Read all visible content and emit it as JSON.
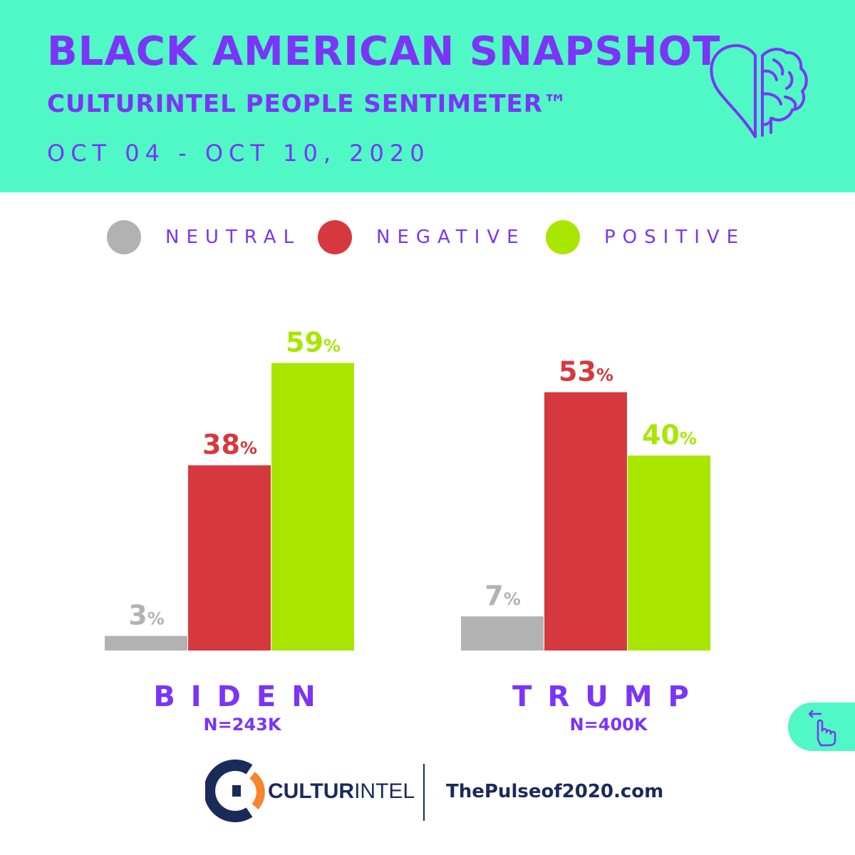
{
  "header": {
    "title": "BLACK AMERICAN SNAPSHOT",
    "subtitle": "CULTURINTEL PEOPLE SENTIMETER™",
    "date_range": "OCT 04 - OCT 10, 2020",
    "icon": "heart-brain-icon"
  },
  "colors": {
    "accent_bg": "#4ff8c4",
    "brand_purple": "#7b34f8",
    "neutral": "#b2b2b2",
    "negative": "#d6393d",
    "positive": "#a8e600",
    "navy": "#1a2b5a",
    "orange": "#f7842e"
  },
  "legend": [
    {
      "label": "NEUTRAL",
      "color": "#b2b2b2"
    },
    {
      "label": "NEGATIVE",
      "color": "#d6393d"
    },
    {
      "label": "POSITIVE",
      "color": "#a8e600"
    }
  ],
  "chart_data": {
    "type": "bar",
    "title": "BLACK AMERICAN SNAPSHOT",
    "categories": [
      "BIDEN",
      "TRUMP"
    ],
    "sample_sizes": [
      "N=243K",
      "N=400K"
    ],
    "series": [
      {
        "name": "NEUTRAL",
        "color": "#b2b2b2",
        "values": [
          3,
          7
        ]
      },
      {
        "name": "NEGATIVE",
        "color": "#d6393d",
        "values": [
          38,
          53
        ]
      },
      {
        "name": "POSITIVE",
        "color": "#a8e600",
        "values": [
          59,
          40
        ]
      }
    ],
    "unit": "%",
    "ylim": [
      0,
      60
    ],
    "xlabel": "",
    "ylabel": ""
  },
  "swipe_icon": "swipe-hand-icon",
  "footer": {
    "logo_text_bold": "CULTUR",
    "logo_text_light": "INTEL",
    "logo_icon": "culturintel-logo-icon",
    "website": "ThePulseof2020.com"
  }
}
